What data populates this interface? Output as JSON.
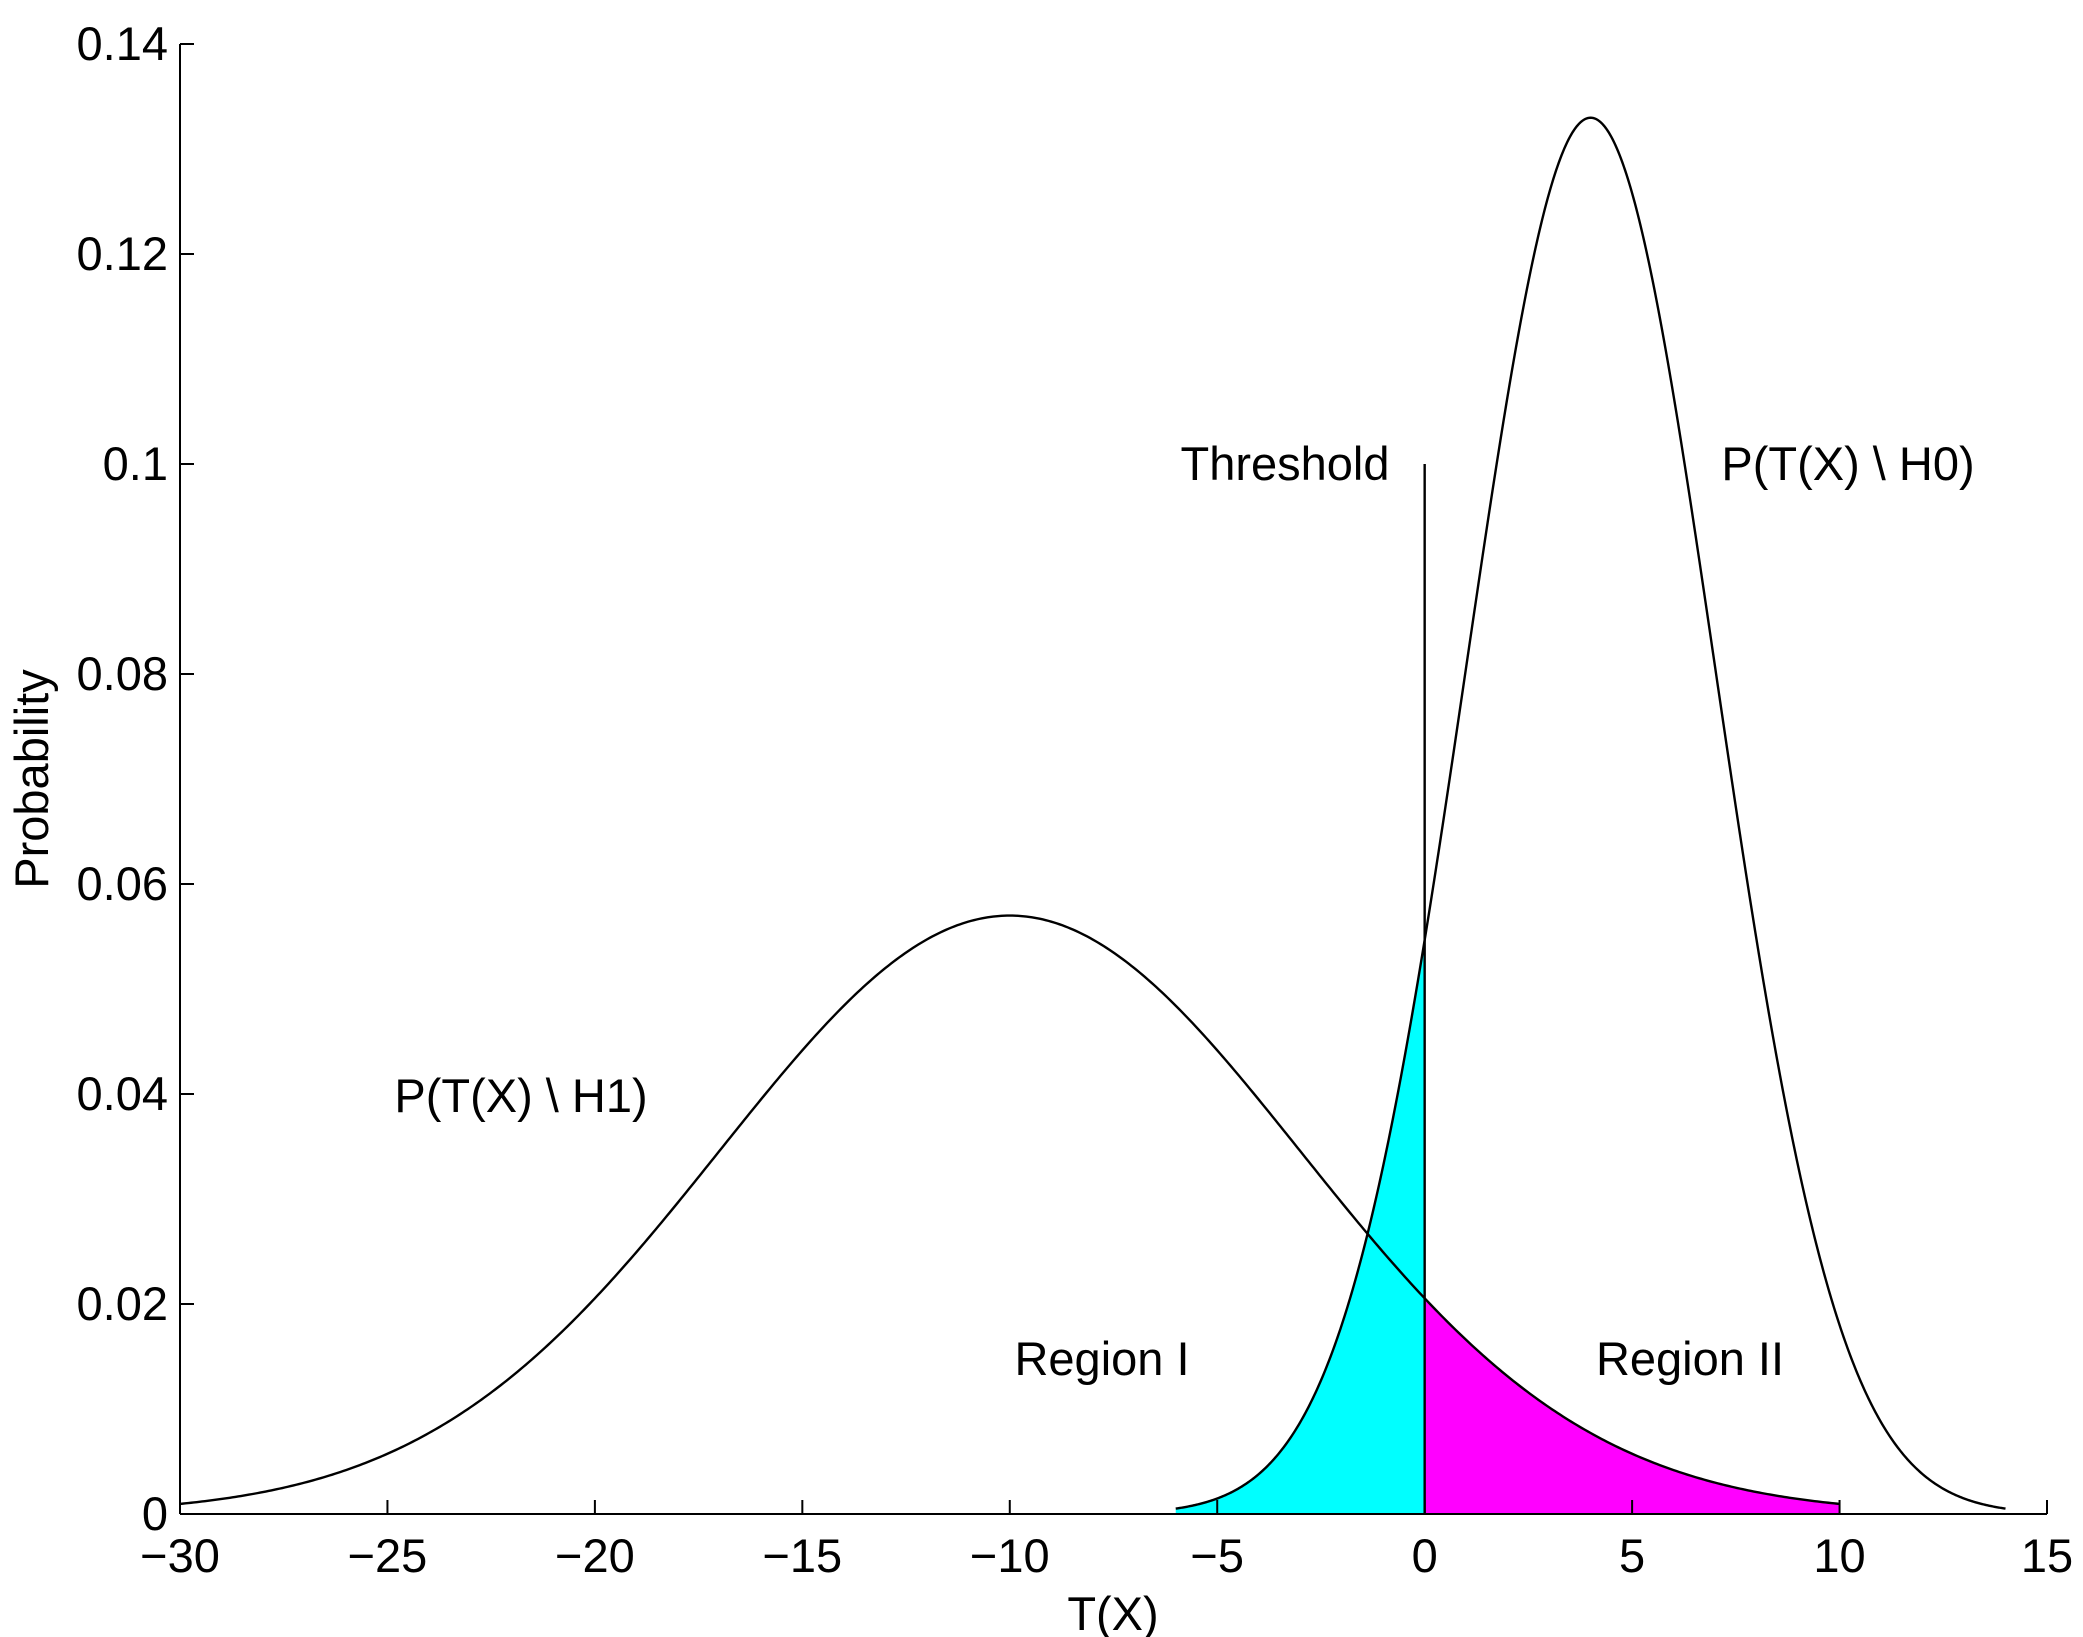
{
  "chart_data": {
    "type": "line",
    "title": "",
    "xlabel": "T(X)",
    "ylabel": "Probability",
    "xlim": [
      -30,
      15
    ],
    "ylim": [
      0,
      0.14
    ],
    "xticks": [
      -30,
      -25,
      -20,
      -15,
      -10,
      -5,
      0,
      5,
      10,
      15
    ],
    "xtick_labels": [
      "−30",
      "−25",
      "−20",
      "−15",
      "−10",
      "−5",
      "0",
      "5",
      "10",
      "15"
    ],
    "yticks": [
      0,
      0.02,
      0.04,
      0.06,
      0.08,
      0.1,
      0.12,
      0.14
    ],
    "ytick_labels": [
      "0",
      "0.02",
      "0.04",
      "0.06",
      "0.08",
      "0.1",
      "0.12",
      "0.14"
    ],
    "grid": false,
    "series": [
      {
        "name": "P(T(X) \\ H1)",
        "distribution": "normal",
        "mean": -10,
        "sd": 7,
        "x_range": [
          -30,
          10
        ],
        "color": "#000000"
      },
      {
        "name": "P(T(X) \\ H0)",
        "distribution": "normal",
        "mean": 4,
        "sd": 3,
        "x_range": [
          -6,
          14
        ],
        "color": "#000000"
      }
    ],
    "threshold": {
      "x": 0,
      "y_top": 0.1
    },
    "regions": [
      {
        "name": "Region I",
        "under": "P(T(X) \\ H0)",
        "x_range": [
          -6,
          0
        ],
        "color": "#00ffff"
      },
      {
        "name": "Region II",
        "under": "P(T(X) \\ H1)",
        "x_range": [
          0,
          10
        ],
        "color": "#ff00ff"
      }
    ],
    "annotations": [
      {
        "text": "Threshold",
        "x": -2.6,
        "y": 0.1
      },
      {
        "text": "P(T(X) \\ H0)",
        "x": 10,
        "y": 0.1
      },
      {
        "text": "P(T(X) \\ H1)",
        "x": -22,
        "y": 0.04
      },
      {
        "text": "Region I",
        "x": -7.8,
        "y": 0.015
      },
      {
        "text": "Region II",
        "x": 6.4,
        "y": 0.015
      }
    ]
  }
}
